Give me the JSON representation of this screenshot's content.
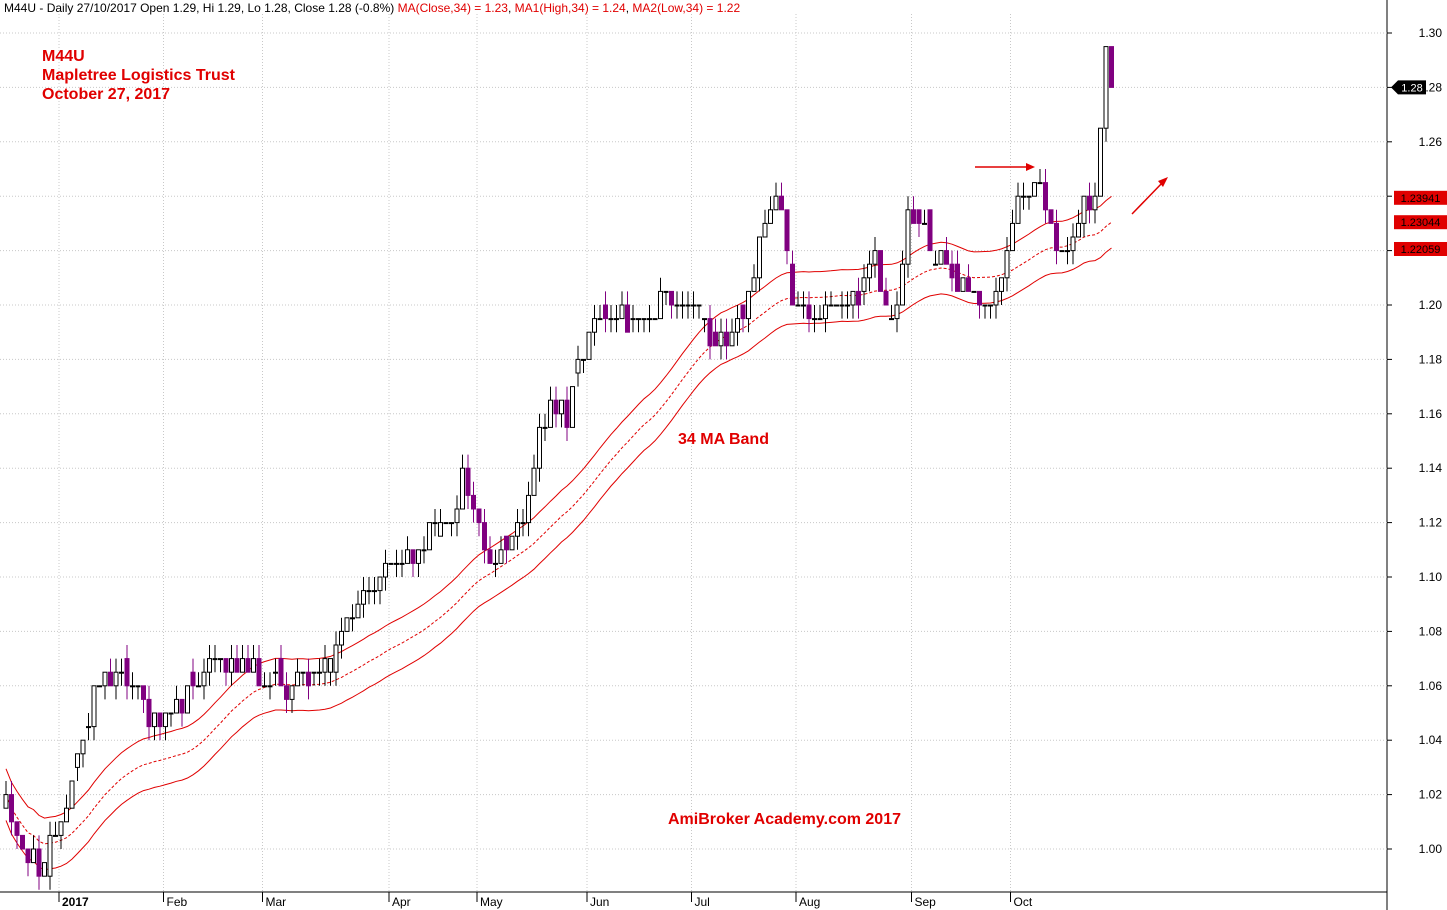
{
  "header": {
    "symbol": "M44U",
    "sep": " - ",
    "summary": "Daily 27/10/2017 Open 1.29, Hi 1.29, Lo 1.28, Close 1.28 (-0.8%)",
    "ma_close": "MA(Close,34) = 1.23",
    "ma_high": "MA1(High,34) = 1.24",
    "ma_low": "MA2(Low,34) = 1.22"
  },
  "annotations": {
    "ticker": "M44U",
    "name": "Mapletree Logistics Trust",
    "date": "October 27, 2017",
    "band_label": "34 MA Band",
    "watermark": "AmiBroker Academy.com  2017"
  },
  "price_tags": {
    "last": "1.28",
    "ma_high": "1.23941",
    "ma_close": "1.23044",
    "ma_low": "1.22059"
  },
  "colors": {
    "up": "#000000",
    "down": "#800080",
    "ma": "#e00000",
    "grid": "#c8c8c8",
    "tag_bg": "#e00000"
  },
  "chart_data": {
    "type": "candlestick",
    "title": "M44U Mapletree Logistics Trust",
    "ylim": [
      0.99,
      1.31
    ],
    "y_ticks": [
      1.0,
      1.02,
      1.04,
      1.06,
      1.08,
      1.1,
      1.12,
      1.14,
      1.16,
      1.18,
      1.2,
      1.22,
      1.24,
      1.26,
      1.28,
      1.3
    ],
    "x_ticks": [
      {
        "label": "2017",
        "i": 10,
        "bold": true
      },
      {
        "label": "Feb",
        "i": 29
      },
      {
        "label": "Mar",
        "i": 47
      },
      {
        "label": "Apr",
        "i": 70
      },
      {
        "label": "May",
        "i": 86
      },
      {
        "label": "Jun",
        "i": 106
      },
      {
        "label": "Jul",
        "i": 125
      },
      {
        "label": "Aug",
        "i": 144
      },
      {
        "label": "Sep",
        "i": 165
      },
      {
        "label": "Oct",
        "i": 183
      }
    ],
    "keypoints": [
      [
        0,
        1.02
      ],
      [
        3,
        1.0
      ],
      [
        6,
        0.995
      ],
      [
        9,
        1.0
      ],
      [
        11,
        1.02
      ],
      [
        14,
        1.04
      ],
      [
        17,
        1.065
      ],
      [
        20,
        1.065
      ],
      [
        24,
        1.06
      ],
      [
        27,
        1.045
      ],
      [
        31,
        1.05
      ],
      [
        35,
        1.065
      ],
      [
        39,
        1.07
      ],
      [
        43,
        1.065
      ],
      [
        47,
        1.065
      ],
      [
        51,
        1.06
      ],
      [
        55,
        1.065
      ],
      [
        59,
        1.07
      ],
      [
        63,
        1.085
      ],
      [
        66,
        1.095
      ],
      [
        70,
        1.105
      ],
      [
        74,
        1.105
      ],
      [
        77,
        1.115
      ],
      [
        80,
        1.12
      ],
      [
        83,
        1.135
      ],
      [
        86,
        1.12
      ],
      [
        88,
        1.105
      ],
      [
        91,
        1.11
      ],
      [
        94,
        1.12
      ],
      [
        96,
        1.145
      ],
      [
        99,
        1.16
      ],
      [
        102,
        1.16
      ],
      [
        104,
        1.18
      ],
      [
        107,
        1.195
      ],
      [
        110,
        1.2
      ],
      [
        113,
        1.195
      ],
      [
        116,
        1.19
      ],
      [
        119,
        1.2
      ],
      [
        122,
        1.2
      ],
      [
        125,
        1.2
      ],
      [
        128,
        1.19
      ],
      [
        130,
        1.185
      ],
      [
        133,
        1.195
      ],
      [
        136,
        1.21
      ],
      [
        139,
        1.24
      ],
      [
        141,
        1.24
      ],
      [
        143,
        1.205
      ],
      [
        145,
        1.195
      ],
      [
        147,
        1.195
      ],
      [
        150,
        1.2
      ],
      [
        153,
        1.195
      ],
      [
        156,
        1.21
      ],
      [
        158,
        1.215
      ],
      [
        160,
        1.195
      ],
      [
        162,
        1.2
      ],
      [
        164,
        1.23
      ],
      [
        166,
        1.235
      ],
      [
        168,
        1.22
      ],
      [
        170,
        1.215
      ],
      [
        172,
        1.205
      ],
      [
        174,
        1.215
      ],
      [
        176,
        1.205
      ],
      [
        178,
        1.2
      ],
      [
        180,
        1.205
      ],
      [
        182,
        1.215
      ],
      [
        184,
        1.235
      ],
      [
        186,
        1.24
      ],
      [
        188,
        1.25
      ],
      [
        190,
        1.23
      ],
      [
        192,
        1.215
      ],
      [
        194,
        1.225
      ],
      [
        196,
        1.235
      ],
      [
        198,
        1.24
      ],
      [
        199,
        1.27
      ],
      [
        200,
        1.29
      ],
      [
        201,
        1.285
      ]
    ],
    "ma_period": 34,
    "band_offset": 0.0095,
    "last_price": 1.28,
    "ma_close_value": 1.23044,
    "ma_high_value": 1.23941,
    "ma_low_value": 1.22059
  }
}
